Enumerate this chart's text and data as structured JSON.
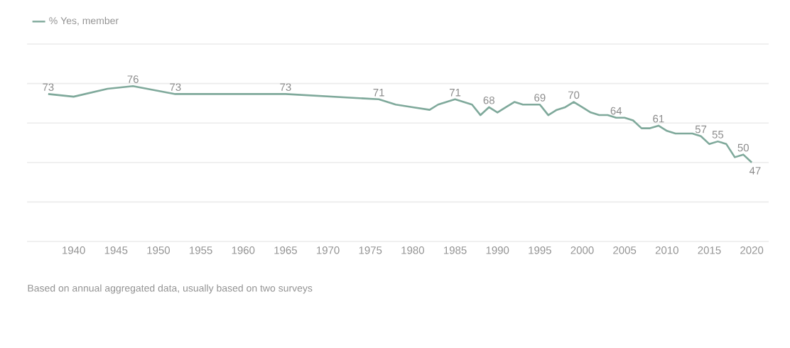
{
  "chart_data": {
    "type": "line",
    "x": [
      1937,
      1940,
      1944,
      1947,
      1952,
      1965,
      1976,
      1978,
      1980,
      1982,
      1983,
      1984,
      1985,
      1986,
      1987,
      1988,
      1989,
      1990,
      1991,
      1992,
      1993,
      1994,
      1995,
      1996,
      1997,
      1998,
      1999,
      2000,
      2001,
      2002,
      2003,
      2004,
      2005,
      2006,
      2007,
      2008,
      2009,
      2010,
      2011,
      2012,
      2013,
      2014,
      2015,
      2016,
      2017,
      2018,
      2019,
      2020
    ],
    "series": [
      {
        "name": "% Yes, member",
        "color": "#7fa99b",
        "values": [
          73,
          72,
          75,
          76,
          73,
          73,
          71,
          69,
          68,
          67,
          69,
          70,
          71,
          70,
          69,
          65,
          68,
          66,
          68,
          70,
          69,
          69,
          69,
          65,
          67,
          68,
          70,
          68,
          66,
          65,
          65,
          64,
          64,
          63,
          60,
          60,
          61,
          59,
          58,
          58,
          58,
          57,
          54,
          55,
          54,
          49,
          50,
          47
        ],
        "value_labels": [
          "73",
          null,
          null,
          "76",
          "73",
          "73",
          "71",
          null,
          null,
          null,
          null,
          null,
          "71",
          null,
          null,
          null,
          "68",
          null,
          null,
          null,
          null,
          null,
          "69",
          null,
          null,
          null,
          "70",
          null,
          null,
          null,
          null,
          "64",
          null,
          null,
          null,
          null,
          "61",
          null,
          null,
          null,
          null,
          "57",
          null,
          "55",
          null,
          null,
          "50",
          "47"
        ]
      }
    ],
    "xlim": [
      1934.5,
      2022
    ],
    "xticks": [
      1940,
      1945,
      1950,
      1955,
      1960,
      1965,
      1970,
      1975,
      1980,
      1985,
      1990,
      1995,
      2000,
      2005,
      2010,
      2015,
      2020
    ],
    "ylim": [
      17,
      92
    ],
    "yticks": [
      {
        "value": 17,
        "label": null
      },
      {
        "value": 32,
        "label": null
      },
      {
        "value": 47,
        "label": null
      },
      {
        "value": 62,
        "label": null
      },
      {
        "value": 77,
        "label": null
      },
      {
        "value": 92,
        "label": null
      }
    ],
    "tick_labels": "x",
    "grid": "y",
    "legend": "top left",
    "marker": "none",
    "line_style": "solid",
    "annotations": [
      "Based on annual aggregated data, usually based on two surveys"
    ]
  }
}
